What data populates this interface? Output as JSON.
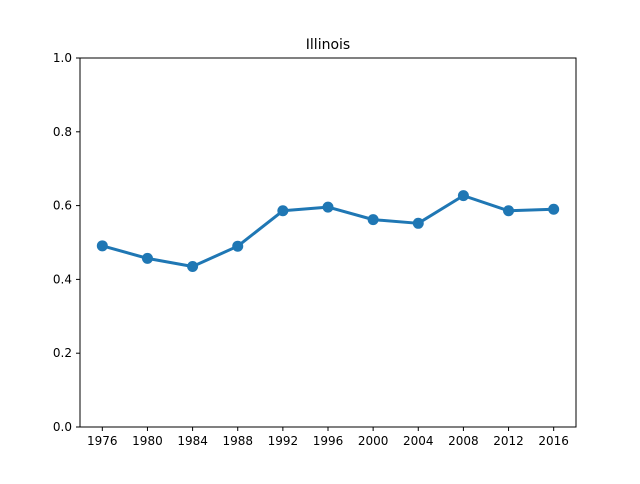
{
  "chart_data": {
    "type": "line",
    "title": "Illinois",
    "xlabel": "",
    "ylabel": "",
    "x": [
      "1976",
      "1980",
      "1984",
      "1988",
      "1992",
      "1996",
      "2000",
      "2004",
      "2008",
      "2012",
      "2016"
    ],
    "series": [
      {
        "values": [
          0.491,
          0.457,
          0.435,
          0.49,
          0.586,
          0.596,
          0.562,
          0.552,
          0.627,
          0.586,
          0.59
        ],
        "color": "#1f77b4",
        "marker": "circle"
      }
    ],
    "ylim": [
      0,
      1.0
    ],
    "yticks": [
      "0.0",
      "0.2",
      "0.4",
      "0.6",
      "0.8",
      "1.0"
    ],
    "grid": false,
    "legend": "none"
  }
}
